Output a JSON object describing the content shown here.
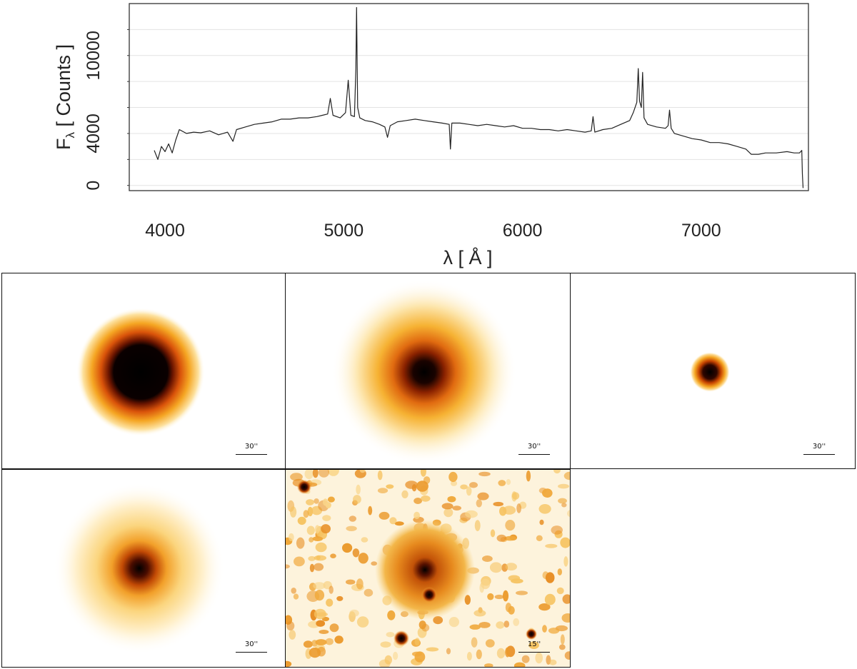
{
  "chart_data": {
    "type": "line",
    "xlabel": "λ [ Å ]",
    "ylabel_main": "F",
    "ylabel_sub": "λ",
    "ylabel_rest": " [ Counts ]",
    "xlim": [
      3800,
      7600
    ],
    "ylim": [
      -400,
      14000
    ],
    "x_ticks": [
      4000,
      5000,
      6000,
      7000
    ],
    "y_ticks": [
      0,
      4000,
      10000
    ],
    "y_gridlines": [
      0,
      2000,
      4000,
      6000,
      8000,
      10000,
      12000
    ],
    "series": [
      {
        "points": [
          [
            3940,
            2700
          ],
          [
            3960,
            2000
          ],
          [
            3980,
            3000
          ],
          [
            4000,
            2600
          ],
          [
            4020,
            3200
          ],
          [
            4040,
            2500
          ],
          [
            4060,
            3500
          ],
          [
            4080,
            4300
          ],
          [
            4120,
            4000
          ],
          [
            4160,
            4100
          ],
          [
            4200,
            4050
          ],
          [
            4250,
            4200
          ],
          [
            4300,
            3900
          ],
          [
            4350,
            4100
          ],
          [
            4380,
            3400
          ],
          [
            4400,
            4300
          ],
          [
            4450,
            4500
          ],
          [
            4500,
            4700
          ],
          [
            4550,
            4800
          ],
          [
            4600,
            4900
          ],
          [
            4650,
            5100
          ],
          [
            4700,
            5100
          ],
          [
            4750,
            5200
          ],
          [
            4800,
            5200
          ],
          [
            4850,
            5300
          ],
          [
            4880,
            5400
          ],
          [
            4910,
            5500
          ],
          [
            4925,
            6700
          ],
          [
            4940,
            5400
          ],
          [
            4980,
            5200
          ],
          [
            5010,
            5600
          ],
          [
            5025,
            8100
          ],
          [
            5040,
            5400
          ],
          [
            5060,
            5300
          ],
          [
            5068,
            9000
          ],
          [
            5072,
            13700
          ],
          [
            5078,
            6000
          ],
          [
            5090,
            5200
          ],
          [
            5120,
            5000
          ],
          [
            5160,
            4900
          ],
          [
            5200,
            4700
          ],
          [
            5230,
            4500
          ],
          [
            5245,
            3700
          ],
          [
            5260,
            4600
          ],
          [
            5300,
            4900
          ],
          [
            5350,
            5000
          ],
          [
            5400,
            5100
          ],
          [
            5450,
            5000
          ],
          [
            5500,
            4900
          ],
          [
            5550,
            4800
          ],
          [
            5590,
            4700
          ],
          [
            5597,
            2800
          ],
          [
            5605,
            4800
          ],
          [
            5650,
            4800
          ],
          [
            5700,
            4700
          ],
          [
            5750,
            4600
          ],
          [
            5800,
            4700
          ],
          [
            5850,
            4600
          ],
          [
            5900,
            4500
          ],
          [
            5950,
            4600
          ],
          [
            6000,
            4400
          ],
          [
            6050,
            4400
          ],
          [
            6100,
            4300
          ],
          [
            6150,
            4300
          ],
          [
            6200,
            4200
          ],
          [
            6250,
            4300
          ],
          [
            6300,
            4200
          ],
          [
            6350,
            4100
          ],
          [
            6385,
            4200
          ],
          [
            6395,
            5300
          ],
          [
            6405,
            4100
          ],
          [
            6450,
            4300
          ],
          [
            6500,
            4400
          ],
          [
            6550,
            4700
          ],
          [
            6600,
            5000
          ],
          [
            6620,
            5600
          ],
          [
            6640,
            6400
          ],
          [
            6648,
            9000
          ],
          [
            6655,
            6500
          ],
          [
            6665,
            6000
          ],
          [
            6672,
            8700
          ],
          [
            6680,
            5200
          ],
          [
            6700,
            4700
          ],
          [
            6750,
            4500
          ],
          [
            6800,
            4400
          ],
          [
            6815,
            4600
          ],
          [
            6823,
            5800
          ],
          [
            6832,
            4400
          ],
          [
            6850,
            4000
          ],
          [
            6900,
            3800
          ],
          [
            6950,
            3600
          ],
          [
            7000,
            3500
          ],
          [
            7050,
            3300
          ],
          [
            7100,
            3300
          ],
          [
            7150,
            3200
          ],
          [
            7200,
            3000
          ],
          [
            7250,
            2800
          ],
          [
            7280,
            2400
          ],
          [
            7320,
            2400
          ],
          [
            7360,
            2500
          ],
          [
            7420,
            2500
          ],
          [
            7480,
            2600
          ],
          [
            7520,
            2500
          ],
          [
            7550,
            2500
          ],
          [
            7563,
            2700
          ],
          [
            7566,
            900
          ],
          [
            7570,
            -200
          ]
        ]
      }
    ]
  },
  "panels": [
    {
      "scale_label": "30''"
    },
    {
      "scale_label": "30''"
    },
    {
      "scale_label": "30''"
    },
    {
      "scale_label": "30''"
    },
    {
      "scale_label": "15''"
    }
  ]
}
